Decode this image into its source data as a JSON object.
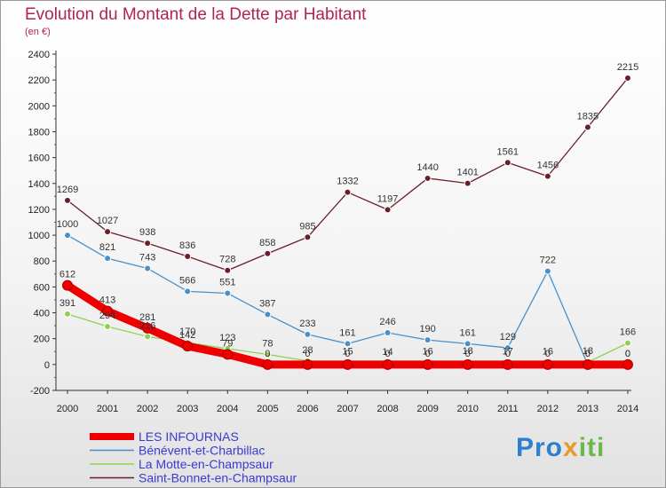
{
  "header": {
    "title": "Evolution du Montant de la Dette par Habitant",
    "subtitle": "(en €)"
  },
  "logo": {
    "text": "Proxiti",
    "parts": [
      "Pro",
      "x",
      "iti"
    ]
  },
  "colors": {
    "title": "#b0225a",
    "legend_text": "#3a3ad0"
  },
  "chart_data": {
    "type": "line",
    "x": [
      "2000",
      "2001",
      "2002",
      "2003",
      "2004",
      "2005",
      "2006",
      "2007",
      "2008",
      "2009",
      "2010",
      "2011",
      "2012",
      "2013",
      "2014"
    ],
    "ylim": [
      -200,
      2400
    ],
    "yticks": [
      "-200",
      "0",
      "200",
      "400",
      "600",
      "800",
      "1000",
      "1200",
      "1400",
      "1600",
      "1800",
      "2000",
      "2200",
      "2400"
    ],
    "grid": false,
    "legend_position": "bottom-left",
    "series": [
      {
        "name": "Saint-Bonnet-en-Champsaur",
        "color": "#6b1e2a",
        "values": [
          1269,
          1027,
          938,
          836,
          728,
          858,
          985,
          1332,
          1197,
          1440,
          1401,
          1561,
          1456,
          1835,
          2215
        ],
        "labels": [
          "1269",
          "1027",
          "938",
          "836",
          "728",
          "858",
          "985",
          "1332",
          "1197",
          "1440",
          "1401",
          "1561",
          "1456",
          "1835",
          "2215"
        ]
      },
      {
        "name": "Bénévent-et-Charbillac",
        "color": "#4a90c8",
        "values": [
          1000,
          821,
          743,
          566,
          551,
          387,
          233,
          161,
          246,
          190,
          161,
          129,
          722,
          0,
          0
        ],
        "labels": [
          "1000",
          "821",
          "743",
          "566",
          "551",
          "387",
          "233",
          "161",
          "246",
          "190",
          "161",
          "129",
          "722",
          "0",
          "0"
        ]
      },
      {
        "name": "La Motte-en-Champsaur",
        "color": "#8fd14f",
        "values": [
          391,
          294,
          216,
          170,
          123,
          78,
          28,
          15,
          14,
          16,
          18,
          17,
          16,
          18,
          166
        ],
        "labels": [
          "391",
          "294",
          "216",
          "170",
          "123",
          "78",
          "28",
          "15",
          "14",
          "16",
          "18",
          "17",
          "16",
          "18",
          "166"
        ]
      },
      {
        "name": "LES INFOURNAS",
        "color": "#ee0000",
        "values": [
          612,
          413,
          281,
          142,
          79,
          0,
          0,
          0,
          0,
          0,
          0,
          0,
          0,
          0,
          0
        ],
        "labels": [
          "612",
          "413",
          "281",
          "142",
          "79",
          "0",
          "0",
          "0",
          "0",
          "0",
          "0",
          "0",
          "0",
          "0",
          "0"
        ]
      }
    ],
    "legend": [
      "LES INFOURNAS",
      "Bénévent-et-Charbillac",
      "La Motte-en-Champsaur",
      "Saint-Bonnet-en-Champsaur"
    ]
  }
}
